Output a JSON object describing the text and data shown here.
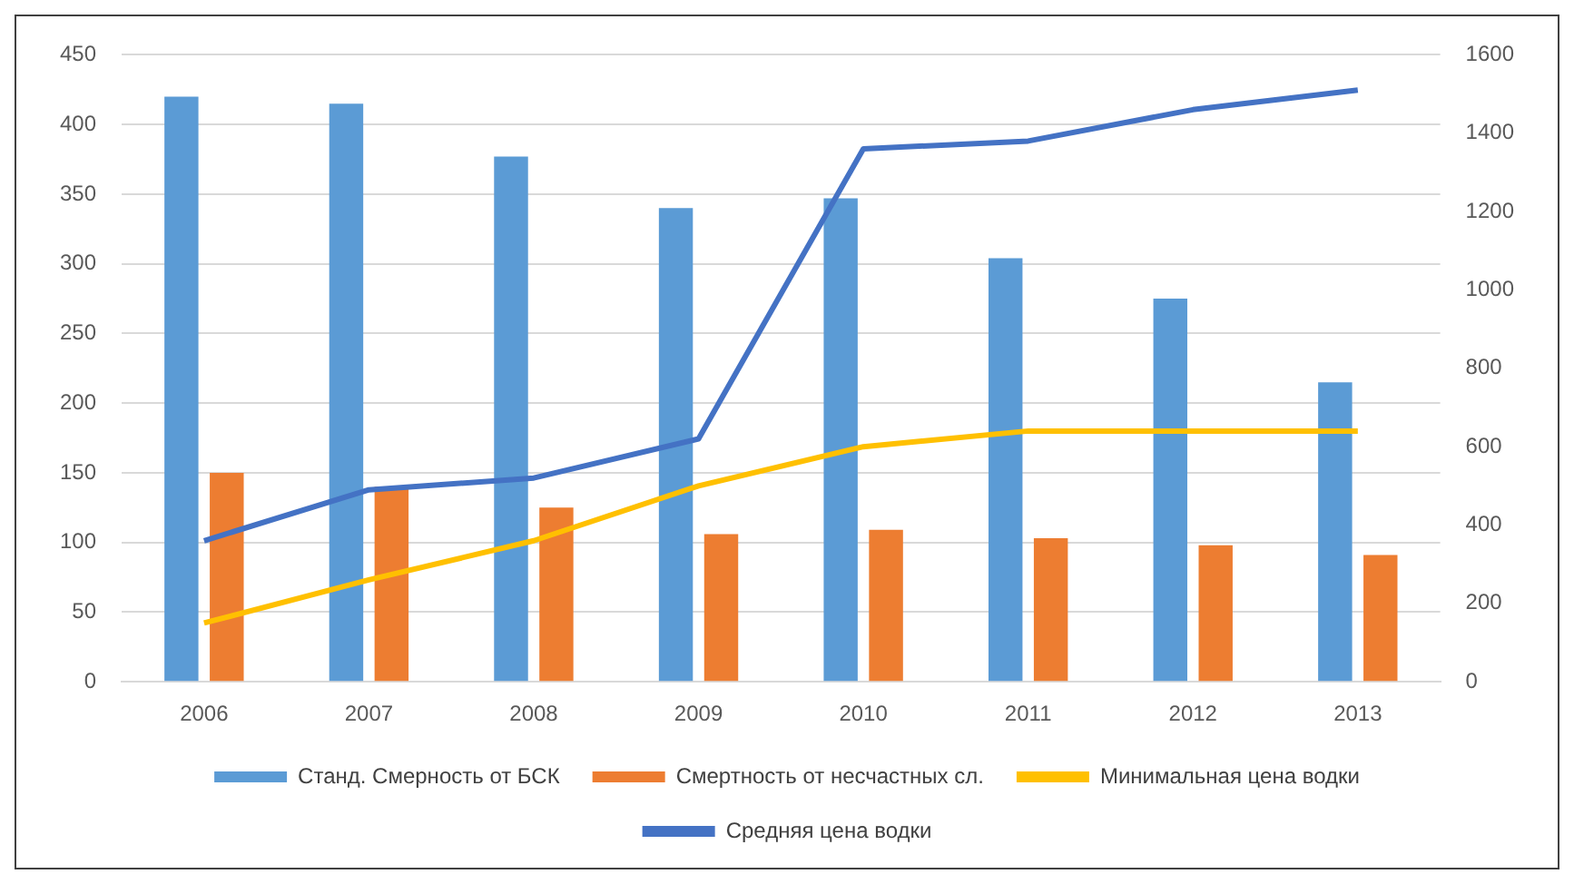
{
  "chart_data": {
    "type": "bar",
    "categories": [
      "2006",
      "2007",
      "2008",
      "2009",
      "2010",
      "2011",
      "2012",
      "2013"
    ],
    "series": [
      {
        "name": "Станд. Смерность от БСК",
        "color": "#5b9bd5",
        "values": [
          420,
          415,
          377,
          340,
          347,
          304,
          275,
          215
        ]
      },
      {
        "name": "Смертность от несчастных сл.",
        "color": "#ed7d31",
        "values": [
          150,
          140,
          125,
          106,
          109,
          103,
          98,
          91
        ]
      },
      {
        "name": "Минимальная цена водки",
        "type": "line",
        "axis": "y2",
        "color": "#ffc000",
        "values": [
          150,
          260,
          360,
          500,
          600,
          640,
          640,
          640
        ]
      },
      {
        "name": "Средняя цена водки",
        "type": "line",
        "axis": "y2",
        "color": "#4472c4",
        "values": [
          360,
          490,
          520,
          620,
          1360,
          1380,
          1460,
          1510
        ]
      }
    ],
    "ylim": [
      0,
      450
    ],
    "yticks": [
      0,
      50,
      100,
      150,
      200,
      250,
      300,
      350,
      400,
      450
    ],
    "y2lim": [
      0,
      1600
    ],
    "y2ticks": [
      0,
      200,
      400,
      600,
      800,
      1000,
      1200,
      1400,
      1600
    ],
    "grid": "y",
    "legend": "bottom",
    "marker": "none"
  }
}
